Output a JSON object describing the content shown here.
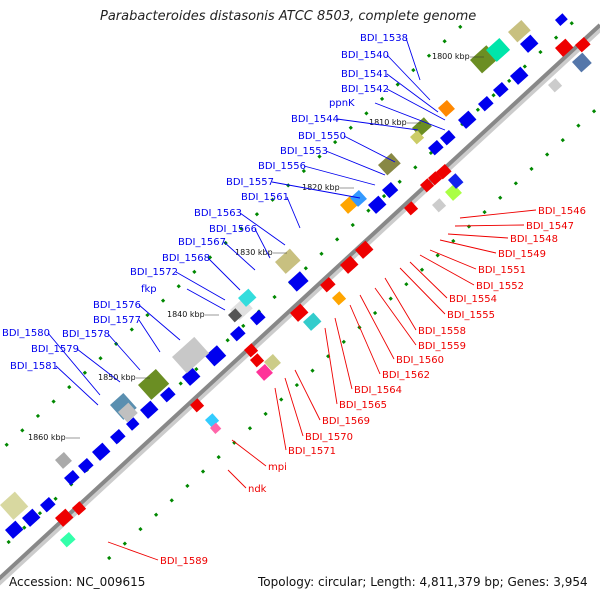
{
  "title": "Parabacteroides distasonis ATCC 8503, complete genome",
  "footer": {
    "accession": "Accession: NC_009615",
    "summary": "Topology: circular; Length: 4,811,379 bp; Genes: 3,954"
  },
  "colors": {
    "forward": "#0000ee",
    "reverse": "#ee0000",
    "backbone": "#888888",
    "tick": "#008800"
  },
  "kbp_ticks": [
    {
      "label": "1800 kbp"
    },
    {
      "label": "1810 kbp"
    },
    {
      "label": "1820 kbp"
    },
    {
      "label": "1830 kbp"
    },
    {
      "label": "1840 kbp"
    },
    {
      "label": "1850 kbp"
    },
    {
      "label": "1860 kbp"
    }
  ],
  "forward_labels": [
    {
      "text": "BDI_1538"
    },
    {
      "text": "BDI_1540"
    },
    {
      "text": "BDI_1541"
    },
    {
      "text": "BDI_1542"
    },
    {
      "text": "ppnK"
    },
    {
      "text": "BDI_1544"
    },
    {
      "text": "BDI_1550"
    },
    {
      "text": "BDI_1553"
    },
    {
      "text": "BDI_1556"
    },
    {
      "text": "BDI_1557"
    },
    {
      "text": "BDI_1561"
    },
    {
      "text": "BDI_1563"
    },
    {
      "text": "BDI_1566"
    },
    {
      "text": "BDI_1567"
    },
    {
      "text": "BDI_1568"
    },
    {
      "text": "BDI_1572"
    },
    {
      "text": "fkp"
    },
    {
      "text": "BDI_1576"
    },
    {
      "text": "BDI_1577"
    },
    {
      "text": "BDI_1578"
    },
    {
      "text": "BDI_1580"
    },
    {
      "text": "BDI_1579"
    },
    {
      "text": "BDI_1581"
    }
  ],
  "reverse_labels": [
    {
      "text": "BDI_1546"
    },
    {
      "text": "BDI_1547"
    },
    {
      "text": "BDI_1548"
    },
    {
      "text": "BDI_1549"
    },
    {
      "text": "BDI_1551"
    },
    {
      "text": "BDI_1552"
    },
    {
      "text": "BDI_1554"
    },
    {
      "text": "BDI_1555"
    },
    {
      "text": "BDI_1558"
    },
    {
      "text": "BDI_1559"
    },
    {
      "text": "BDI_1560"
    },
    {
      "text": "BDI_1562"
    },
    {
      "text": "BDI_1564"
    },
    {
      "text": "BDI_1565"
    },
    {
      "text": "BDI_1569"
    },
    {
      "text": "BDI_1570"
    },
    {
      "text": "BDI_1571"
    },
    {
      "text": "mpi"
    },
    {
      "text": "ndk"
    },
    {
      "text": "BDI_1589"
    }
  ]
}
